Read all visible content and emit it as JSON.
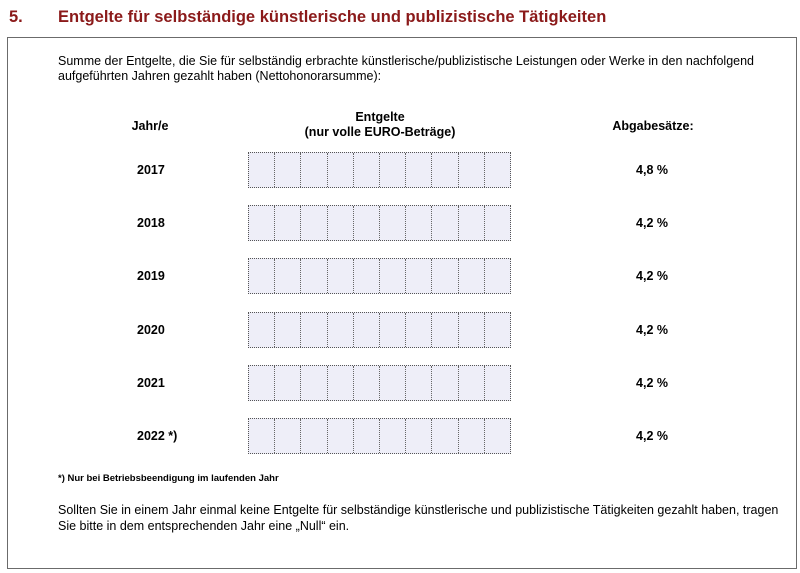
{
  "section": {
    "number": "5.",
    "title": "Entgelte für selbständige künstlerische und publizistische Tätigkeiten"
  },
  "intro": "Summe der Entgelte, die Sie für selbständig erbrachte künstlerische/publizistische Leistungen oder Werke in den nachfolgend aufgeführten Jahren gezahlt haben (Nettohonorarsumme):",
  "table": {
    "col_year": "Jahr/e",
    "col_amount_line1": "Entgelte",
    "col_amount_line2": "(nur volle EURO-Beträge)",
    "col_rate": "Abgabesätze:",
    "rows": [
      {
        "year": "2017",
        "rate": "4,8 %"
      },
      {
        "year": "2018",
        "rate": "4,2 %"
      },
      {
        "year": "2019",
        "rate": "4,2 %"
      },
      {
        "year": "2020",
        "rate": "4,2 %"
      },
      {
        "year": "2021",
        "rate": "4,2 %"
      },
      {
        "year": "2022  *)",
        "rate": "4,2 %"
      }
    ]
  },
  "footnote": "*) Nur bei Betriebsbeendigung im laufenden Jahr",
  "closing": "Sollten Sie in einem Jahr einmal keine Entgelte für selbständige künstlerische und publizistische Tätigkeiten gezahlt haben, tragen Sie bitte in dem entsprechenden Jahr eine „Null“ ein."
}
